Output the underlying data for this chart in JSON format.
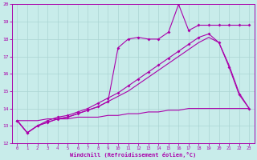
{
  "xlabel": "Windchill (Refroidissement éolien,°C)",
  "bg_color": "#c8ecea",
  "grid_color": "#aad4d2",
  "line_color": "#aa00aa",
  "xlim": [
    -0.5,
    23.5
  ],
  "ylim": [
    12,
    20
  ],
  "xticks": [
    0,
    1,
    2,
    3,
    4,
    5,
    6,
    7,
    8,
    9,
    10,
    11,
    12,
    13,
    14,
    15,
    16,
    17,
    18,
    19,
    20,
    21,
    22,
    23
  ],
  "yticks": [
    12,
    13,
    14,
    15,
    16,
    17,
    18,
    19,
    20
  ],
  "line_spike_x": [
    0,
    1,
    2,
    3,
    4,
    5,
    6,
    7,
    8,
    9,
    10,
    11,
    12,
    13,
    14,
    15,
    16,
    17,
    18,
    19,
    20,
    21,
    22,
    23
  ],
  "line_spike_y": [
    13.3,
    12.6,
    13.0,
    13.2,
    13.4,
    13.5,
    13.7,
    13.9,
    14.1,
    14.4,
    17.5,
    18.0,
    18.1,
    18.0,
    18.0,
    18.4,
    20.0,
    18.5,
    18.8,
    18.8,
    18.8,
    18.8,
    18.8,
    18.8
  ],
  "line_main_x": [
    0,
    1,
    2,
    3,
    4,
    5,
    6,
    7,
    8,
    9,
    10,
    11,
    12,
    13,
    14,
    15,
    16,
    17,
    18,
    19,
    20,
    21,
    22,
    23
  ],
  "line_main_y": [
    13.3,
    12.6,
    13.0,
    13.3,
    13.5,
    13.6,
    13.8,
    14.0,
    14.3,
    14.6,
    14.9,
    15.3,
    15.7,
    16.1,
    16.5,
    16.9,
    17.3,
    17.7,
    18.1,
    18.3,
    17.8,
    16.4,
    14.8,
    14.0
  ],
  "line_smooth1_x": [
    0,
    1,
    2,
    3,
    4,
    5,
    6,
    7,
    8,
    9,
    10,
    11,
    12,
    13,
    14,
    15,
    16,
    17,
    18,
    19,
    20,
    21,
    22,
    23
  ],
  "line_smooth1_y": [
    13.3,
    12.6,
    13.0,
    13.2,
    13.4,
    13.5,
    13.7,
    13.9,
    14.1,
    14.4,
    14.7,
    15.0,
    15.4,
    15.8,
    16.2,
    16.6,
    17.0,
    17.4,
    17.8,
    18.1,
    17.8,
    16.5,
    14.9,
    14.0
  ],
  "line_flat_x": [
    0,
    1,
    2,
    3,
    4,
    5,
    6,
    7,
    8,
    9,
    10,
    11,
    12,
    13,
    14,
    15,
    16,
    17,
    18,
    19,
    20,
    21,
    22,
    23
  ],
  "line_flat_y": [
    13.3,
    13.3,
    13.3,
    13.4,
    13.4,
    13.4,
    13.5,
    13.5,
    13.5,
    13.6,
    13.6,
    13.7,
    13.7,
    13.8,
    13.8,
    13.9,
    13.9,
    14.0,
    14.0,
    14.0,
    14.0,
    14.0,
    14.0,
    14.0
  ]
}
